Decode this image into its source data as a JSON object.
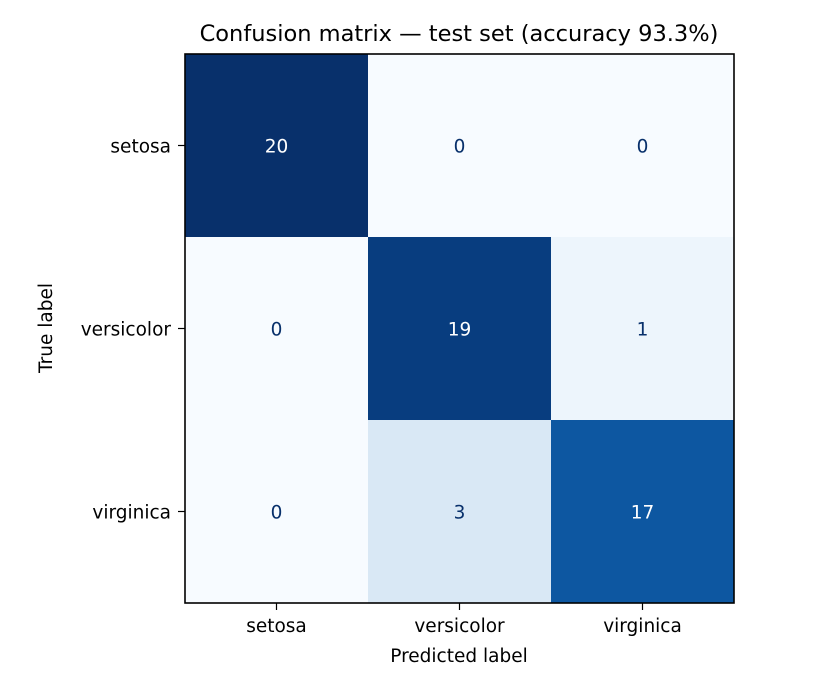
{
  "chart_data": {
    "type": "heatmap",
    "title": "Confusion matrix — test set (accuracy 93.3%)",
    "xlabel": "Predicted label",
    "ylabel": "True label",
    "x_categories": [
      "setosa",
      "versicolor",
      "virginica"
    ],
    "y_categories": [
      "setosa",
      "versicolor",
      "virginica"
    ],
    "values": [
      [
        20,
        0,
        0
      ],
      [
        0,
        19,
        1
      ],
      [
        0,
        3,
        17
      ]
    ],
    "colormap": "Blues",
    "vmin": 0,
    "vmax": 20,
    "colorbar": false,
    "grid": false,
    "light_text_color": "#ffffff",
    "dark_text_color": "#08306b",
    "axis_color": "#000000"
  }
}
